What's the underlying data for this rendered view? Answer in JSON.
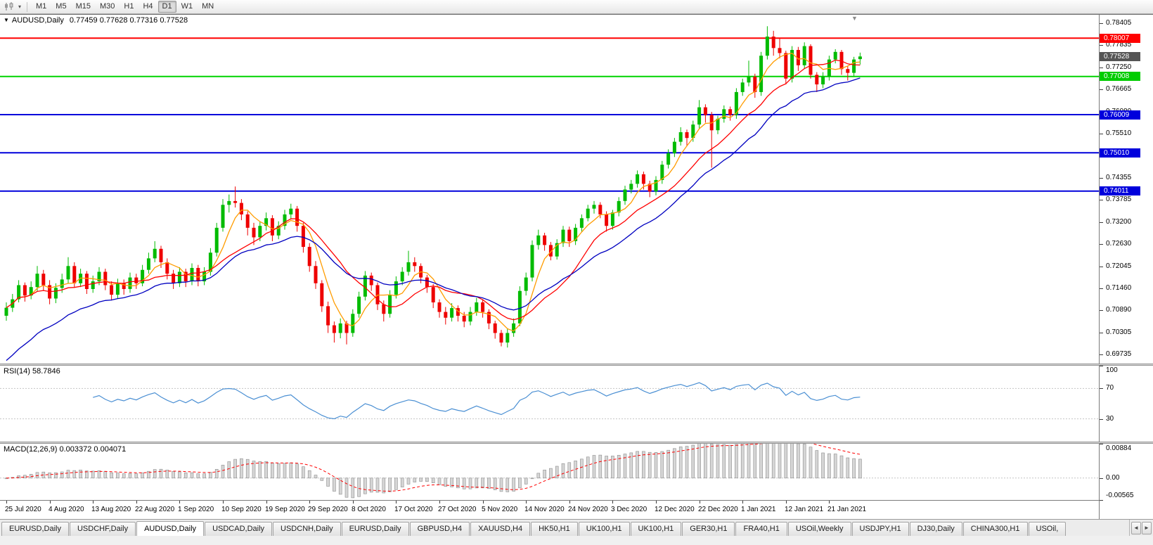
{
  "toolbar": {
    "timeframes": [
      "M1",
      "M5",
      "M15",
      "M30",
      "H1",
      "H4",
      "D1",
      "W1",
      "MN"
    ],
    "active_timeframe": "D1"
  },
  "icons": {
    "chart_menu": "▼",
    "shift_marker": "▼",
    "chart_type_dropdown": "▾",
    "tab_scroll_left": "◄",
    "tab_scroll_right": "►"
  },
  "chart": {
    "symbol_title": "AUDUSD,Daily",
    "ohlc_text": "0.77459 0.77628 0.77316 0.77528"
  },
  "indicators": {
    "rsi": {
      "label_text": "RSI(14) 58.7846"
    },
    "macd": {
      "label_text": "MACD(12,26,9) 0.003372 0.004071"
    }
  },
  "tabs": {
    "active_index": 2,
    "items": [
      "EURUSD,Daily",
      "USDCHF,Daily",
      "AUDUSD,Daily",
      "USDCAD,Daily",
      "USDCNH,Daily",
      "EURUSD,Daily",
      "GBPUSD,H4",
      "XAUUSD,H4",
      "HK50,H1",
      "UK100,H1",
      "UK100,H1",
      "GER30,H1",
      "FRA40,H1",
      "USOil,Weekly",
      "USDJPY,H1",
      "DJ30,Daily",
      "CHINA300,H1",
      "USOil,"
    ]
  },
  "chart_data": {
    "type": "candlestick",
    "symbol": "AUDUSD",
    "timeframe": "Daily",
    "price_range": [
      0.695,
      0.7862
    ],
    "price_axis_ticks": [
      "0.78405",
      "0.77835",
      "0.77250",
      "0.76665",
      "0.76080",
      "0.75510",
      "0.74925",
      "0.74355",
      "0.73785",
      "0.73200",
      "0.72630",
      "0.72045",
      "0.71460",
      "0.70890",
      "0.70305",
      "0.69735"
    ],
    "x_labels": [
      "25 Jul 2020",
      "4 Aug 2020",
      "13 Aug 2020",
      "22 Aug 2020",
      "1 Sep 2020",
      "10 Sep 2020",
      "19 Sep 2020",
      "29 Sep 2020",
      "8 Oct 2020",
      "17 Oct 2020",
      "27 Oct 2020",
      "5 Nov 2020",
      "14 Nov 2020",
      "24 Nov 2020",
      "3 Dec 2020",
      "12 Dec 2020",
      "22 Dec 2020",
      "1 Jan 2021",
      "12 Jan 2021",
      "21 Jan 2021"
    ],
    "candles": [
      [
        0.7075,
        0.711,
        0.7062,
        0.7096
      ],
      [
        0.7096,
        0.7132,
        0.7085,
        0.7118
      ],
      [
        0.7118,
        0.7168,
        0.711,
        0.7155
      ],
      [
        0.7155,
        0.7162,
        0.7112,
        0.7128
      ],
      [
        0.7128,
        0.7165,
        0.7118,
        0.715
      ],
      [
        0.715,
        0.7205,
        0.714,
        0.7185
      ],
      [
        0.7185,
        0.7195,
        0.714,
        0.7155
      ],
      [
        0.7155,
        0.7168,
        0.7105,
        0.712
      ],
      [
        0.712,
        0.716,
        0.7108,
        0.7148
      ],
      [
        0.7148,
        0.7185,
        0.7135,
        0.717
      ],
      [
        0.717,
        0.7228,
        0.716,
        0.7205
      ],
      [
        0.7205,
        0.7215,
        0.7148,
        0.716
      ],
      [
        0.716,
        0.7198,
        0.715,
        0.7185
      ],
      [
        0.7185,
        0.7192,
        0.7132,
        0.7145
      ],
      [
        0.7145,
        0.718,
        0.7135,
        0.7165
      ],
      [
        0.7165,
        0.7202,
        0.7155,
        0.719
      ],
      [
        0.719,
        0.7198,
        0.7142,
        0.7155
      ],
      [
        0.7155,
        0.7165,
        0.7115,
        0.713
      ],
      [
        0.713,
        0.7172,
        0.712,
        0.716
      ],
      [
        0.716,
        0.717,
        0.713,
        0.7145
      ],
      [
        0.7145,
        0.7188,
        0.7135,
        0.7175
      ],
      [
        0.7175,
        0.7185,
        0.7145,
        0.716
      ],
      [
        0.716,
        0.7208,
        0.7152,
        0.7195
      ],
      [
        0.7195,
        0.724,
        0.7185,
        0.7225
      ],
      [
        0.7225,
        0.727,
        0.7215,
        0.725
      ],
      [
        0.725,
        0.7258,
        0.72,
        0.7215
      ],
      [
        0.7215,
        0.7225,
        0.717,
        0.7185
      ],
      [
        0.7185,
        0.7195,
        0.7145,
        0.716
      ],
      [
        0.716,
        0.7202,
        0.715,
        0.719
      ],
      [
        0.719,
        0.7198,
        0.715,
        0.7165
      ],
      [
        0.7165,
        0.7212,
        0.7155,
        0.72
      ],
      [
        0.72,
        0.7208,
        0.7152,
        0.7165
      ],
      [
        0.7165,
        0.7202,
        0.7155,
        0.719
      ],
      [
        0.719,
        0.7252,
        0.718,
        0.724
      ],
      [
        0.724,
        0.7318,
        0.723,
        0.7305
      ],
      [
        0.7305,
        0.738,
        0.7295,
        0.7365
      ],
      [
        0.7365,
        0.7392,
        0.7345,
        0.7375
      ],
      [
        0.7375,
        0.7413,
        0.7358,
        0.737
      ],
      [
        0.737,
        0.738,
        0.7325,
        0.734
      ],
      [
        0.734,
        0.7348,
        0.7285,
        0.7305
      ],
      [
        0.7305,
        0.7318,
        0.726,
        0.728
      ],
      [
        0.728,
        0.7322,
        0.727,
        0.731
      ],
      [
        0.731,
        0.7345,
        0.7298,
        0.733
      ],
      [
        0.733,
        0.7338,
        0.727,
        0.7285
      ],
      [
        0.7285,
        0.7322,
        0.7275,
        0.731
      ],
      [
        0.731,
        0.7352,
        0.73,
        0.734
      ],
      [
        0.734,
        0.7368,
        0.7328,
        0.7355
      ],
      [
        0.7355,
        0.7362,
        0.7295,
        0.731
      ],
      [
        0.731,
        0.7318,
        0.724,
        0.7255
      ],
      [
        0.7255,
        0.7265,
        0.719,
        0.7205
      ],
      [
        0.7205,
        0.7218,
        0.7145,
        0.716
      ],
      [
        0.716,
        0.7168,
        0.7085,
        0.71
      ],
      [
        0.71,
        0.7112,
        0.703,
        0.705
      ],
      [
        0.705,
        0.706,
        0.7005,
        0.703
      ],
      [
        0.703,
        0.7068,
        0.7016,
        0.7055
      ],
      [
        0.7055,
        0.7062,
        0.7,
        0.703
      ],
      [
        0.703,
        0.7092,
        0.702,
        0.708
      ],
      [
        0.708,
        0.7138,
        0.707,
        0.7125
      ],
      [
        0.7125,
        0.7192,
        0.7115,
        0.718
      ],
      [
        0.718,
        0.7188,
        0.714,
        0.7155
      ],
      [
        0.7155,
        0.7162,
        0.709,
        0.7105
      ],
      [
        0.7105,
        0.7115,
        0.706,
        0.708
      ],
      [
        0.708,
        0.7142,
        0.707,
        0.713
      ],
      [
        0.713,
        0.7178,
        0.712,
        0.7165
      ],
      [
        0.7165,
        0.7202,
        0.7155,
        0.719
      ],
      [
        0.719,
        0.7245,
        0.718,
        0.7215
      ],
      [
        0.7215,
        0.7228,
        0.719,
        0.7205
      ],
      [
        0.7205,
        0.7212,
        0.716,
        0.7175
      ],
      [
        0.7175,
        0.7182,
        0.7135,
        0.715
      ],
      [
        0.715,
        0.7158,
        0.7095,
        0.711
      ],
      [
        0.711,
        0.7118,
        0.707,
        0.7085
      ],
      [
        0.7085,
        0.7098,
        0.7052,
        0.707
      ],
      [
        0.707,
        0.7108,
        0.706,
        0.7095
      ],
      [
        0.7095,
        0.7102,
        0.706,
        0.7075
      ],
      [
        0.7075,
        0.7085,
        0.7045,
        0.706
      ],
      [
        0.706,
        0.7098,
        0.705,
        0.7085
      ],
      [
        0.7085,
        0.7122,
        0.7075,
        0.711
      ],
      [
        0.711,
        0.7118,
        0.707,
        0.7085
      ],
      [
        0.7085,
        0.7092,
        0.704,
        0.7055
      ],
      [
        0.7055,
        0.7062,
        0.7015,
        0.703
      ],
      [
        0.703,
        0.7038,
        0.6995,
        0.7005
      ],
      [
        0.7005,
        0.7042,
        0.6992,
        0.703
      ],
      [
        0.703,
        0.7068,
        0.702,
        0.7055
      ],
      [
        0.7055,
        0.7152,
        0.7048,
        0.714
      ],
      [
        0.714,
        0.7188,
        0.7128,
        0.7175
      ],
      [
        0.7175,
        0.7272,
        0.7165,
        0.726
      ],
      [
        0.726,
        0.73,
        0.7248,
        0.7285
      ],
      [
        0.7285,
        0.7292,
        0.7245,
        0.726
      ],
      [
        0.726,
        0.7268,
        0.722,
        0.723
      ],
      [
        0.723,
        0.7275,
        0.7222,
        0.7265
      ],
      [
        0.7265,
        0.731,
        0.7255,
        0.73
      ],
      [
        0.73,
        0.7308,
        0.7255,
        0.727
      ],
      [
        0.727,
        0.7315,
        0.726,
        0.7305
      ],
      [
        0.7305,
        0.734,
        0.7295,
        0.733
      ],
      [
        0.733,
        0.7365,
        0.7322,
        0.7355
      ],
      [
        0.7355,
        0.7375,
        0.7342,
        0.7365
      ],
      [
        0.7365,
        0.7372,
        0.733,
        0.734
      ],
      [
        0.734,
        0.7348,
        0.7295,
        0.731
      ],
      [
        0.731,
        0.7352,
        0.73,
        0.7345
      ],
      [
        0.7345,
        0.7385,
        0.7335,
        0.7375
      ],
      [
        0.7375,
        0.7415,
        0.7365,
        0.7405
      ],
      [
        0.7405,
        0.743,
        0.7395,
        0.742
      ],
      [
        0.742,
        0.7455,
        0.741,
        0.7445
      ],
      [
        0.7445,
        0.7452,
        0.7405,
        0.742
      ],
      [
        0.742,
        0.7428,
        0.7385,
        0.74
      ],
      [
        0.74,
        0.744,
        0.739,
        0.743
      ],
      [
        0.743,
        0.748,
        0.742,
        0.747
      ],
      [
        0.747,
        0.751,
        0.746,
        0.75
      ],
      [
        0.75,
        0.754,
        0.749,
        0.753
      ],
      [
        0.753,
        0.7568,
        0.752,
        0.7555
      ],
      [
        0.7555,
        0.7562,
        0.7518,
        0.754
      ],
      [
        0.754,
        0.7585,
        0.753,
        0.7575
      ],
      [
        0.7575,
        0.7639,
        0.7565,
        0.762
      ],
      [
        0.762,
        0.7628,
        0.758,
        0.76
      ],
      [
        0.76,
        0.7608,
        0.7462,
        0.756
      ],
      [
        0.756,
        0.7598,
        0.755,
        0.759
      ],
      [
        0.759,
        0.7625,
        0.758,
        0.7615
      ],
      [
        0.7615,
        0.7622,
        0.7585,
        0.76
      ],
      [
        0.76,
        0.767,
        0.759,
        0.766
      ],
      [
        0.766,
        0.7695,
        0.765,
        0.7685
      ],
      [
        0.7685,
        0.7742,
        0.7675,
        0.77
      ],
      [
        0.77,
        0.7708,
        0.7645,
        0.766
      ],
      [
        0.766,
        0.7765,
        0.765,
        0.7755
      ],
      [
        0.7755,
        0.7832,
        0.7745,
        0.7805
      ],
      [
        0.7805,
        0.782,
        0.7755,
        0.7775
      ],
      [
        0.7775,
        0.78,
        0.7748,
        0.7762
      ],
      [
        0.7762,
        0.7768,
        0.768,
        0.7695
      ],
      [
        0.7695,
        0.778,
        0.7685,
        0.777
      ],
      [
        0.777,
        0.7778,
        0.7715,
        0.773
      ],
      [
        0.773,
        0.779,
        0.772,
        0.778
      ],
      [
        0.778,
        0.7785,
        0.7695,
        0.7705
      ],
      [
        0.7705,
        0.7712,
        0.766,
        0.768
      ],
      [
        0.768,
        0.7712,
        0.767,
        0.77
      ],
      [
        0.77,
        0.7755,
        0.769,
        0.7745
      ],
      [
        0.7745,
        0.7772,
        0.7735,
        0.7765
      ],
      [
        0.7765,
        0.777,
        0.7705,
        0.772
      ],
      [
        0.772,
        0.7728,
        0.769,
        0.771
      ],
      [
        0.771,
        0.7752,
        0.77,
        0.7745
      ],
      [
        0.7746,
        0.7763,
        0.7732,
        0.7753
      ]
    ],
    "moving_averages": [
      {
        "name": "ma-fast-orange",
        "method": "sma",
        "period": 5,
        "color": "#ff9c00"
      },
      {
        "name": "ma-mid-red",
        "method": "sma",
        "period": 13,
        "color": "#ff0000"
      },
      {
        "name": "ma-slow-blue",
        "method": "ema",
        "period": 22,
        "seed": 0.6945,
        "color": "#0000c0"
      }
    ],
    "hlines": [
      {
        "price": 0.78007,
        "color": "#ff0000",
        "label": "0.78007",
        "label_bg": "#ff0000",
        "label_fg": "#ffffff"
      },
      {
        "price": 0.77008,
        "color": "#00d300",
        "label": "0.77008",
        "label_bg": "#00cc00",
        "label_fg": "#ffffff"
      },
      {
        "price": 0.76009,
        "color": "#0000dc",
        "label": "0.76009",
        "label_bg": "#0000dc",
        "label_fg": "#ffffff"
      },
      {
        "price": 0.7501,
        "color": "#0000dc",
        "label": "0.75010",
        "label_bg": "#0000dc",
        "label_fg": "#ffffff"
      },
      {
        "price": 0.74011,
        "color": "#0000dc",
        "label": "0.74011",
        "label_bg": "#0000dc",
        "label_fg": "#ffffff"
      }
    ],
    "current_price": {
      "label": "0.77528",
      "bg": "#555555",
      "fg": "#ffffff"
    },
    "colors": {
      "bull": "#00bb00",
      "bear": "#ee0000",
      "rsi_line": "#4a8fd3",
      "macd_hist": "#d6d6d6",
      "macd_hist_border": "#8c8c8c",
      "macd_signal": "#ff0000"
    },
    "rsi_axis_labels": [
      "100",
      "70",
      "30"
    ],
    "rsi_levels": [
      70,
      30
    ],
    "rsi_range": [
      0,
      100
    ],
    "macd": {
      "fast": 12,
      "slow": 26,
      "signal": 9,
      "range": [
        -0.00565,
        0.00884
      ],
      "axis_labels": [
        "0.00884",
        "0.00",
        "-0.00565"
      ]
    }
  }
}
